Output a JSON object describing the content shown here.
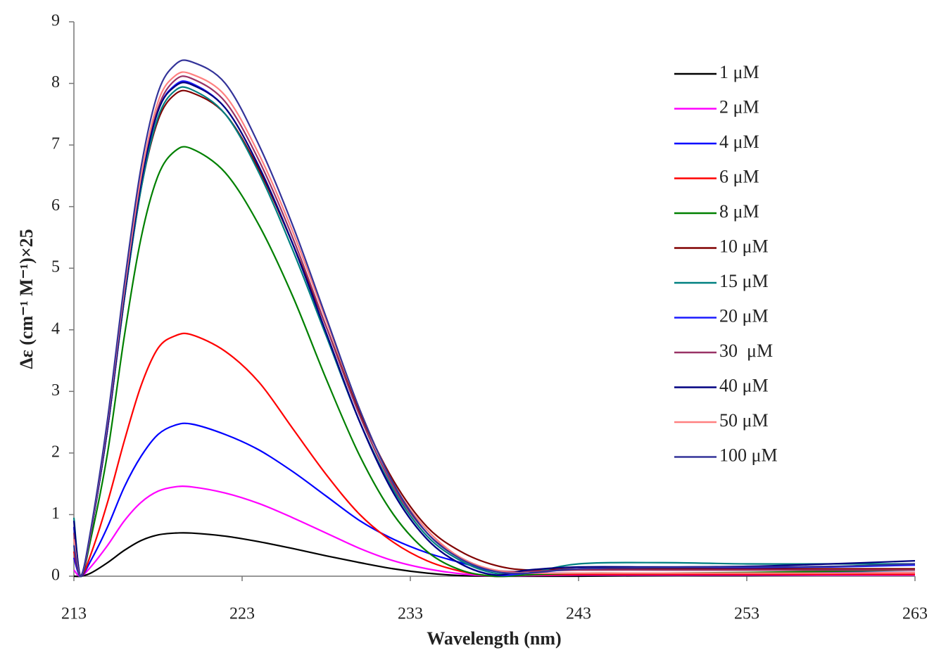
{
  "chart_data": {
    "type": "line",
    "xlabel": "Wavelength (nm)",
    "ylabel": "Δε (cm⁻¹ M⁻¹)×25",
    "x": [
      213,
      213.4,
      214,
      215,
      216,
      217,
      218,
      219,
      220,
      222,
      224,
      226,
      228,
      230,
      232,
      234,
      236,
      238,
      240,
      243,
      248,
      253,
      258,
      263
    ],
    "xlim": [
      213,
      263
    ],
    "xticks": [
      213,
      223,
      233,
      243,
      253,
      263
    ],
    "ylim": [
      0,
      9
    ],
    "yticks": [
      0,
      1,
      2,
      3,
      4,
      5,
      6,
      7,
      8,
      9
    ],
    "legend": "upper right",
    "series": [
      {
        "name": "1 μM",
        "color": "#000000",
        "values": [
          0,
          0,
          0.05,
          0.22,
          0.42,
          0.58,
          0.67,
          0.7,
          0.7,
          0.65,
          0.56,
          0.45,
          0.33,
          0.22,
          0.12,
          0.05,
          0.01,
          0,
          0,
          0,
          0.01,
          0.01,
          0.02,
          0.02
        ]
      },
      {
        "name": "2 μM",
        "color": "#ff00ff",
        "values": [
          0.1,
          0,
          0.15,
          0.5,
          0.9,
          1.2,
          1.38,
          1.45,
          1.45,
          1.35,
          1.18,
          0.95,
          0.7,
          0.45,
          0.25,
          0.12,
          0.04,
          0,
          0.01,
          0.02,
          0.02,
          0.02,
          0.02,
          0.02
        ]
      },
      {
        "name": "4 μM",
        "color": "#0000ff",
        "values": [
          0.3,
          0,
          0.25,
          0.8,
          1.45,
          1.95,
          2.3,
          2.45,
          2.47,
          2.3,
          2.05,
          1.7,
          1.3,
          0.9,
          0.6,
          0.38,
          0.22,
          0.08,
          0.05,
          0.05,
          0.05,
          0.05,
          0.06,
          0.06
        ]
      },
      {
        "name": "6 μM",
        "color": "#ff0000",
        "values": [
          0.4,
          0,
          0.35,
          1.2,
          2.2,
          3.1,
          3.7,
          3.9,
          3.92,
          3.65,
          3.15,
          2.4,
          1.65,
          1.0,
          0.55,
          0.25,
          0.08,
          0,
          0.02,
          0.03,
          0.03,
          0.03,
          0.03,
          0.03
        ]
      },
      {
        "name": "8 μM",
        "color": "#008000",
        "values": [
          0.8,
          0,
          0.6,
          2.0,
          3.9,
          5.5,
          6.5,
          6.9,
          6.94,
          6.55,
          5.7,
          4.55,
          3.2,
          1.95,
          1.0,
          0.4,
          0.1,
          0,
          0.02,
          0.05,
          0.05,
          0.06,
          0.08,
          0.1
        ]
      },
      {
        "name": "10 μM",
        "color": "#800000",
        "values": [
          0.8,
          0,
          0.7,
          2.4,
          4.5,
          6.3,
          7.4,
          7.82,
          7.85,
          7.5,
          6.6,
          5.4,
          4.05,
          2.65,
          1.55,
          0.8,
          0.4,
          0.18,
          0.1,
          0.12,
          0.12,
          0.12,
          0.12,
          0.12
        ]
      },
      {
        "name": "15 μM",
        "color": "#008080",
        "values": [
          0.95,
          0,
          0.7,
          2.4,
          4.5,
          6.3,
          7.45,
          7.88,
          7.9,
          7.5,
          6.55,
          5.3,
          3.9,
          2.5,
          1.4,
          0.65,
          0.25,
          0.05,
          0.05,
          0.2,
          0.22,
          0.2,
          0.2,
          0.2
        ]
      },
      {
        "name": "20 μM",
        "color": "#1a1aff",
        "values": [
          0.8,
          0,
          0.7,
          2.4,
          4.55,
          6.4,
          7.55,
          7.97,
          8.0,
          7.6,
          6.65,
          5.4,
          3.95,
          2.5,
          1.35,
          0.6,
          0.2,
          0.02,
          0.05,
          0.12,
          0.14,
          0.14,
          0.15,
          0.18
        ]
      },
      {
        "name": "30  μM",
        "color": "#993366",
        "values": [
          0.7,
          0,
          0.7,
          2.45,
          4.6,
          6.45,
          7.6,
          8.05,
          8.08,
          7.7,
          6.75,
          5.5,
          4.05,
          2.6,
          1.45,
          0.7,
          0.3,
          0.1,
          0.08,
          0.1,
          0.1,
          0.1,
          0.1,
          0.1
        ]
      },
      {
        "name": "40 μM",
        "color": "#000080",
        "values": [
          0.9,
          0,
          0.7,
          2.4,
          4.55,
          6.4,
          7.55,
          7.95,
          7.98,
          7.6,
          6.65,
          5.4,
          3.95,
          2.5,
          1.35,
          0.6,
          0.2,
          0.02,
          0.1,
          0.15,
          0.15,
          0.16,
          0.2,
          0.25
        ]
      },
      {
        "name": "50 μM",
        "color": "#ff8080",
        "values": [
          0.6,
          0,
          0.72,
          2.5,
          4.65,
          6.5,
          7.7,
          8.12,
          8.15,
          7.8,
          6.85,
          5.6,
          4.15,
          2.7,
          1.5,
          0.75,
          0.3,
          0.1,
          0.05,
          0.05,
          0.05,
          0.05,
          0.05,
          0.06
        ]
      },
      {
        "name": "100 μM",
        "color": "#333399",
        "values": [
          0.5,
          0,
          0.75,
          2.55,
          4.75,
          6.65,
          7.85,
          8.3,
          8.35,
          8.0,
          7.0,
          5.7,
          4.2,
          2.7,
          1.5,
          0.7,
          0.28,
          0.08,
          0.05,
          0.12,
          0.14,
          0.15,
          0.16,
          0.2
        ]
      }
    ]
  }
}
